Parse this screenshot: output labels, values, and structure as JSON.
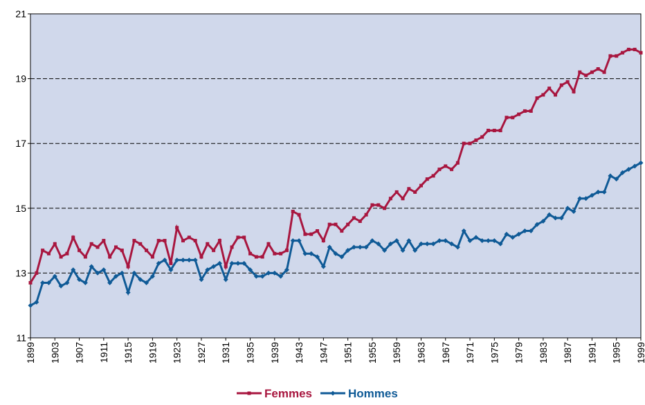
{
  "chart_data": {
    "type": "line",
    "x": [
      1899,
      1900,
      1901,
      1902,
      1903,
      1904,
      1905,
      1906,
      1907,
      1908,
      1909,
      1910,
      1911,
      1912,
      1913,
      1914,
      1915,
      1916,
      1917,
      1918,
      1919,
      1920,
      1921,
      1922,
      1923,
      1924,
      1925,
      1926,
      1927,
      1928,
      1929,
      1930,
      1931,
      1932,
      1933,
      1934,
      1935,
      1936,
      1937,
      1938,
      1939,
      1940,
      1941,
      1942,
      1943,
      1944,
      1945,
      1946,
      1947,
      1948,
      1949,
      1950,
      1951,
      1952,
      1953,
      1954,
      1955,
      1956,
      1957,
      1958,
      1959,
      1960,
      1961,
      1962,
      1963,
      1964,
      1965,
      1966,
      1967,
      1968,
      1969,
      1970,
      1971,
      1972,
      1973,
      1974,
      1975,
      1976,
      1977,
      1978,
      1979,
      1980,
      1981,
      1982,
      1983,
      1984,
      1985,
      1986,
      1987,
      1988,
      1989,
      1990,
      1991,
      1992,
      1993,
      1994,
      1995,
      1996,
      1997,
      1998,
      1999
    ],
    "series": [
      {
        "name": "Femmes",
        "color": "#a8163f",
        "marker": "square",
        "values": [
          12.7,
          13.0,
          13.7,
          13.6,
          13.9,
          13.5,
          13.6,
          14.1,
          13.7,
          13.5,
          13.9,
          13.8,
          14.0,
          13.5,
          13.8,
          13.7,
          13.2,
          14.0,
          13.9,
          13.7,
          13.5,
          14.0,
          14.0,
          13.3,
          14.4,
          14.0,
          14.1,
          14.0,
          13.5,
          13.9,
          13.7,
          14.0,
          13.2,
          13.8,
          14.1,
          14.1,
          13.6,
          13.5,
          13.5,
          13.9,
          13.6,
          13.6,
          13.7,
          14.9,
          14.8,
          14.2,
          14.2,
          14.3,
          14.0,
          14.5,
          14.5,
          14.3,
          14.5,
          14.7,
          14.6,
          14.8,
          15.1,
          15.1,
          15.0,
          15.3,
          15.5,
          15.3,
          15.6,
          15.5,
          15.7,
          15.9,
          16.0,
          16.2,
          16.3,
          16.2,
          16.4,
          17.0,
          17.0,
          17.1,
          17.2,
          17.4,
          17.4,
          17.4,
          17.8,
          17.8,
          17.9,
          18.0,
          18.0,
          18.4,
          18.5,
          18.7,
          18.5,
          18.8,
          18.9,
          18.6,
          19.2,
          19.1,
          19.2,
          19.3,
          19.2,
          19.7,
          19.7,
          19.8,
          19.9,
          19.9,
          19.8
        ]
      },
      {
        "name": "Hommes",
        "color": "#0f5a96",
        "marker": "diamond",
        "values": [
          12.0,
          12.1,
          12.7,
          12.7,
          12.9,
          12.6,
          12.7,
          13.1,
          12.8,
          12.7,
          13.2,
          13.0,
          13.1,
          12.7,
          12.9,
          13.0,
          12.4,
          13.0,
          12.8,
          12.7,
          12.9,
          13.3,
          13.4,
          13.1,
          13.4,
          13.4,
          13.4,
          13.4,
          12.8,
          13.1,
          13.2,
          13.3,
          12.8,
          13.3,
          13.3,
          13.3,
          13.1,
          12.9,
          12.9,
          13.0,
          13.0,
          12.9,
          13.1,
          14.0,
          14.0,
          13.6,
          13.6,
          13.5,
          13.2,
          13.8,
          13.6,
          13.5,
          13.7,
          13.8,
          13.8,
          13.8,
          14.0,
          13.9,
          13.7,
          13.9,
          14.0,
          13.7,
          14.0,
          13.7,
          13.9,
          13.9,
          13.9,
          14.0,
          14.0,
          13.9,
          13.8,
          14.3,
          14.0,
          14.1,
          14.0,
          14.0,
          14.0,
          13.9,
          14.2,
          14.1,
          14.2,
          14.3,
          14.3,
          14.5,
          14.6,
          14.8,
          14.7,
          14.7,
          15.0,
          14.9,
          15.3,
          15.3,
          15.4,
          15.5,
          15.5,
          16.0,
          15.9,
          16.1,
          16.2,
          16.3,
          16.4
        ]
      }
    ],
    "xlim": [
      1899,
      1999
    ],
    "xticks": [
      1899,
      1903,
      1907,
      1911,
      1915,
      1919,
      1923,
      1927,
      1931,
      1935,
      1939,
      1943,
      1947,
      1951,
      1955,
      1959,
      1963,
      1967,
      1971,
      1975,
      1979,
      1983,
      1987,
      1991,
      1995,
      1999
    ],
    "ylim": [
      11,
      21
    ],
    "yticks": [
      11,
      13,
      15,
      17,
      19,
      21
    ],
    "grid": true,
    "plot_background": "#d0d8eb",
    "legend": "bottom"
  }
}
